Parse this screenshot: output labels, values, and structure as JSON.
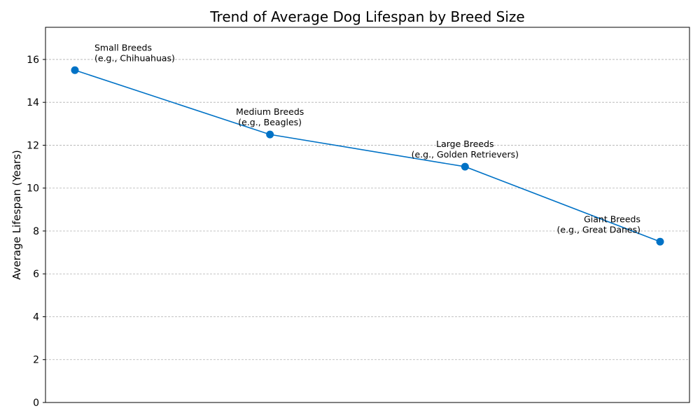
{
  "chart_data": {
    "type": "line",
    "title": "Trend of Average Dog Lifespan by Breed Size",
    "xlabel": "",
    "ylabel": "Average Lifespan (Years)",
    "ylim": [
      0,
      17.5
    ],
    "yticks": [
      0,
      2,
      4,
      6,
      8,
      10,
      12,
      14,
      16
    ],
    "grid": "horizontal",
    "line_color": "#0072c6",
    "series": [
      {
        "values": [
          15.5,
          12.5,
          11.0,
          7.5
        ]
      }
    ],
    "annotations": [
      {
        "line1": "Small Breeds",
        "line2": "(e.g., Chihuahuas)"
      },
      {
        "line1": "Medium Breeds",
        "line2": "(e.g., Beagles)"
      },
      {
        "line1": "Large Breeds",
        "line2": "(e.g., Golden Retrievers)"
      },
      {
        "line1": "Giant Breeds",
        "line2": "(e.g., Great Danes)"
      }
    ]
  }
}
